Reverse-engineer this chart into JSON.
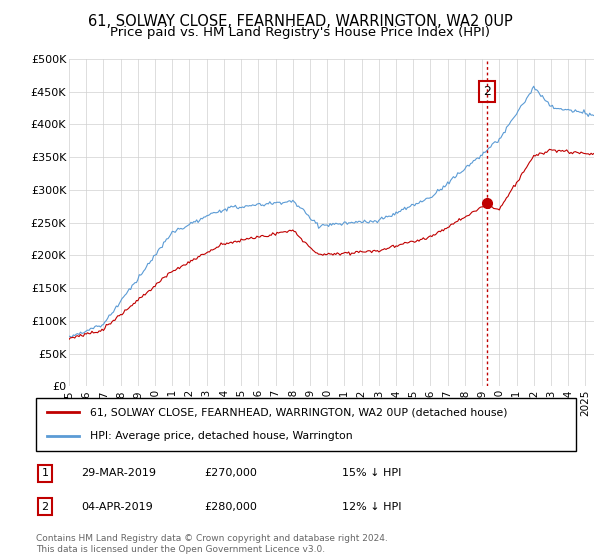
{
  "title": "61, SOLWAY CLOSE, FEARNHEAD, WARRINGTON, WA2 0UP",
  "subtitle": "Price paid vs. HM Land Registry's House Price Index (HPI)",
  "ylim": [
    0,
    500000
  ],
  "yticks": [
    0,
    50000,
    100000,
    150000,
    200000,
    250000,
    300000,
    350000,
    400000,
    450000,
    500000
  ],
  "ytick_labels": [
    "£0",
    "£50K",
    "£100K",
    "£150K",
    "£200K",
    "£250K",
    "£300K",
    "£350K",
    "£400K",
    "£450K",
    "£500K"
  ],
  "hpi_color": "#5B9BD5",
  "price_color": "#C00000",
  "annotation_color": "#C00000",
  "background_color": "#FFFFFF",
  "grid_color": "#D0D0D0",
  "legend_label_red": "61, SOLWAY CLOSE, FEARNHEAD, WARRINGTON, WA2 0UP (detached house)",
  "legend_label_blue": "HPI: Average price, detached house, Warrington",
  "transaction1_date": "29-MAR-2019",
  "transaction1_price": "£270,000",
  "transaction1_hpi": "15% ↓ HPI",
  "transaction2_date": "04-APR-2019",
  "transaction2_price": "£280,000",
  "transaction2_hpi": "12% ↓ HPI",
  "footnote1": "Contains HM Land Registry data © Crown copyright and database right 2024.",
  "footnote2": "This data is licensed under the Open Government Licence v3.0.",
  "title_fontsize": 10.5,
  "subtitle_fontsize": 9.5
}
